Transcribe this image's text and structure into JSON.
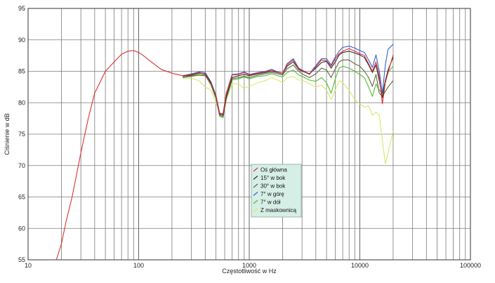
{
  "chart_data": {
    "type": "line",
    "title": "",
    "xlabel": "Częstotliwość w Hz",
    "ylabel": "Ciśnienie w dB",
    "x_scale": "log",
    "xlim": [
      10,
      100000
    ],
    "ylim": [
      55,
      95
    ],
    "x_ticks": [
      {
        "value": 10,
        "label": "10"
      },
      {
        "value": 100,
        "label": "100"
      },
      {
        "value": 1000,
        "label": "1000"
      },
      {
        "value": 10000,
        "label": "10000"
      },
      {
        "value": 100000,
        "label": "100000"
      }
    ],
    "y_ticks": [
      {
        "value": 55,
        "label": "55"
      },
      {
        "value": 60,
        "label": "60"
      },
      {
        "value": 65,
        "label": "65"
      },
      {
        "value": 70,
        "label": "70"
      },
      {
        "value": 75,
        "label": "75"
      },
      {
        "value": 80,
        "label": "80"
      },
      {
        "value": 85,
        "label": "85"
      },
      {
        "value": 90,
        "label": "90"
      },
      {
        "value": 95,
        "label": "95"
      }
    ],
    "grid": true,
    "legend_position": "center",
    "series": [
      {
        "name": "Oś główna",
        "color": "#e03030",
        "x": [
          18,
          20,
          22,
          25,
          30,
          35,
          40,
          50,
          60,
          70,
          80,
          90,
          100,
          110,
          130,
          160,
          200,
          250,
          300,
          350,
          400,
          450,
          500,
          540,
          580,
          620,
          700,
          800,
          900,
          1000,
          1200,
          1400,
          1600,
          1800,
          2000,
          2200,
          2500,
          2800,
          3000,
          3500,
          4000,
          4500,
          5000,
          5500,
          6000,
          6500,
          7000,
          8000,
          9000,
          10000,
          11000,
          12000,
          13000,
          14000,
          15000,
          16000,
          17000,
          18000,
          20000
        ],
        "y": [
          54.5,
          57.5,
          61,
          65,
          72,
          77.5,
          81.5,
          85,
          86.5,
          87.7,
          88.2,
          88.3,
          88.0,
          87.5,
          86.5,
          85.3,
          84.7,
          84.3,
          84.5,
          84.8,
          84.5,
          83.0,
          81.0,
          78.0,
          78.2,
          81.5,
          84.4,
          84.5,
          84.8,
          84.4,
          84.7,
          84.9,
          85.2,
          84.8,
          84.6,
          86.0,
          86.8,
          85.4,
          85.1,
          84.5,
          85.7,
          86.8,
          86.7,
          85.8,
          87.0,
          87.8,
          88.2,
          88.6,
          88.2,
          87.8,
          87.5,
          86.2,
          85.0,
          86.5,
          84.2,
          79.8,
          83.2,
          84.8,
          87.6
        ]
      },
      {
        "name": "15° w bok",
        "color": "#2b2b2b",
        "x": [
          250,
          300,
          350,
          400,
          450,
          500,
          540,
          580,
          620,
          700,
          800,
          900,
          1000,
          1200,
          1400,
          1600,
          1800,
          2000,
          2200,
          2500,
          2800,
          3000,
          3500,
          4000,
          4500,
          5000,
          5500,
          6000,
          6500,
          7000,
          8000,
          9000,
          10000,
          11000,
          12000,
          13000,
          14000,
          15000,
          16000,
          17000,
          18000,
          20000
        ],
        "y": [
          84.2,
          84.4,
          84.7,
          84.6,
          83.2,
          81.0,
          78.2,
          78.0,
          81.0,
          84.0,
          84.3,
          84.5,
          84.3,
          84.6,
          84.8,
          85.0,
          84.8,
          84.6,
          85.8,
          86.5,
          85.3,
          85.0,
          84.6,
          85.5,
          86.4,
          86.6,
          85.5,
          86.5,
          87.6,
          88.0,
          88.2,
          87.9,
          87.6,
          87.2,
          86.0,
          84.8,
          86.0,
          83.5,
          80.8,
          83.5,
          85.2,
          87.2
        ]
      },
      {
        "name": "30° w bok",
        "color": "#5a6a3a",
        "x": [
          250,
          300,
          350,
          400,
          450,
          500,
          540,
          580,
          620,
          700,
          800,
          900,
          1000,
          1200,
          1400,
          1600,
          1800,
          2000,
          2200,
          2500,
          2800,
          3000,
          3500,
          4000,
          4500,
          5000,
          5500,
          6000,
          6500,
          7000,
          8000,
          9000,
          10000,
          11000,
          12000,
          13000,
          14000,
          15000,
          16000,
          17000,
          18000,
          20000
        ],
        "y": [
          84.0,
          84.2,
          84.4,
          84.3,
          83.0,
          80.8,
          78.0,
          77.8,
          80.8,
          83.8,
          84.0,
          84.2,
          84.0,
          84.4,
          84.6,
          84.8,
          84.6,
          84.4,
          85.4,
          86.0,
          85.0,
          84.6,
          84.0,
          84.6,
          85.5,
          85.2,
          84.0,
          85.4,
          86.5,
          86.8,
          86.8,
          86.2,
          85.8,
          85.0,
          84.0,
          82.6,
          84.5,
          81.5,
          81.0,
          81.8,
          82.5,
          83.5
        ]
      },
      {
        "name": "7° w górę",
        "color": "#3a5fd0",
        "x": [
          250,
          300,
          350,
          400,
          450,
          500,
          540,
          580,
          620,
          700,
          800,
          900,
          1000,
          1200,
          1400,
          1600,
          1800,
          2000,
          2200,
          2500,
          2800,
          3000,
          3500,
          4000,
          4500,
          5000,
          5500,
          6000,
          6500,
          7000,
          8000,
          9000,
          10000,
          11000,
          12000,
          13000,
          14000,
          15000,
          16000,
          17000,
          18000,
          20000
        ],
        "y": [
          84.3,
          84.6,
          84.9,
          84.8,
          83.3,
          81.2,
          78.3,
          78.3,
          81.5,
          84.5,
          84.6,
          84.9,
          84.5,
          84.8,
          85.0,
          85.3,
          84.9,
          84.7,
          86.2,
          87.0,
          85.5,
          85.2,
          84.6,
          85.9,
          87.0,
          87.0,
          86.0,
          87.3,
          88.2,
          88.8,
          89.0,
          88.7,
          88.3,
          88.0,
          86.8,
          85.6,
          87.6,
          85.0,
          81.5,
          86.0,
          88.5,
          89.3
        ]
      },
      {
        "name": "7° w dół",
        "color": "#55bb33",
        "x": [
          250,
          300,
          350,
          400,
          450,
          500,
          540,
          580,
          620,
          700,
          800,
          900,
          1000,
          1200,
          1400,
          1600,
          1800,
          2000,
          2200,
          2500,
          2800,
          3000,
          3500,
          4000,
          4500,
          5000,
          5500,
          6000,
          6500,
          7000,
          8000,
          9000,
          10000,
          11000,
          12000,
          13000,
          14000,
          15000,
          16000,
          17000,
          18000,
          20000
        ],
        "y": [
          84.0,
          84.3,
          84.5,
          84.4,
          82.8,
          80.6,
          77.8,
          77.6,
          80.6,
          83.6,
          83.8,
          84.1,
          83.8,
          84.2,
          84.3,
          84.6,
          84.3,
          84.1,
          84.8,
          85.2,
          84.4,
          84.2,
          83.6,
          83.4,
          84.0,
          83.2,
          81.5,
          83.8,
          85.5,
          85.8,
          85.5,
          85.0,
          84.5,
          84.0,
          82.5,
          81.0,
          83.0,
          82.0,
          81.5,
          83.5,
          84.8,
          85.8
        ]
      },
      {
        "name": "Z maskownicą",
        "color": "#d8e86a",
        "x": [
          250,
          300,
          350,
          400,
          450,
          500,
          540,
          580,
          620,
          700,
          800,
          900,
          1000,
          1200,
          1400,
          1600,
          1800,
          2000,
          2200,
          2500,
          2800,
          3000,
          3500,
          4000,
          4500,
          5000,
          5500,
          6000,
          6500,
          7000,
          8000,
          9000,
          10000,
          11000,
          12000,
          13000,
          14000,
          15000,
          16000,
          17000,
          18000,
          20000
        ],
        "y": [
          83.8,
          83.9,
          83.5,
          82.5,
          82.0,
          80.0,
          78.5,
          78.0,
          80.5,
          83.0,
          83.0,
          82.3,
          82.6,
          83.2,
          83.5,
          84.0,
          83.6,
          83.2,
          84.0,
          84.2,
          83.6,
          83.6,
          83.0,
          82.5,
          82.8,
          82.0,
          80.5,
          82.0,
          83.5,
          83.2,
          82.0,
          80.5,
          79.8,
          79.3,
          79.5,
          78.0,
          78.5,
          78.0,
          74.0,
          70.3,
          72.0,
          75.5
        ]
      }
    ]
  }
}
